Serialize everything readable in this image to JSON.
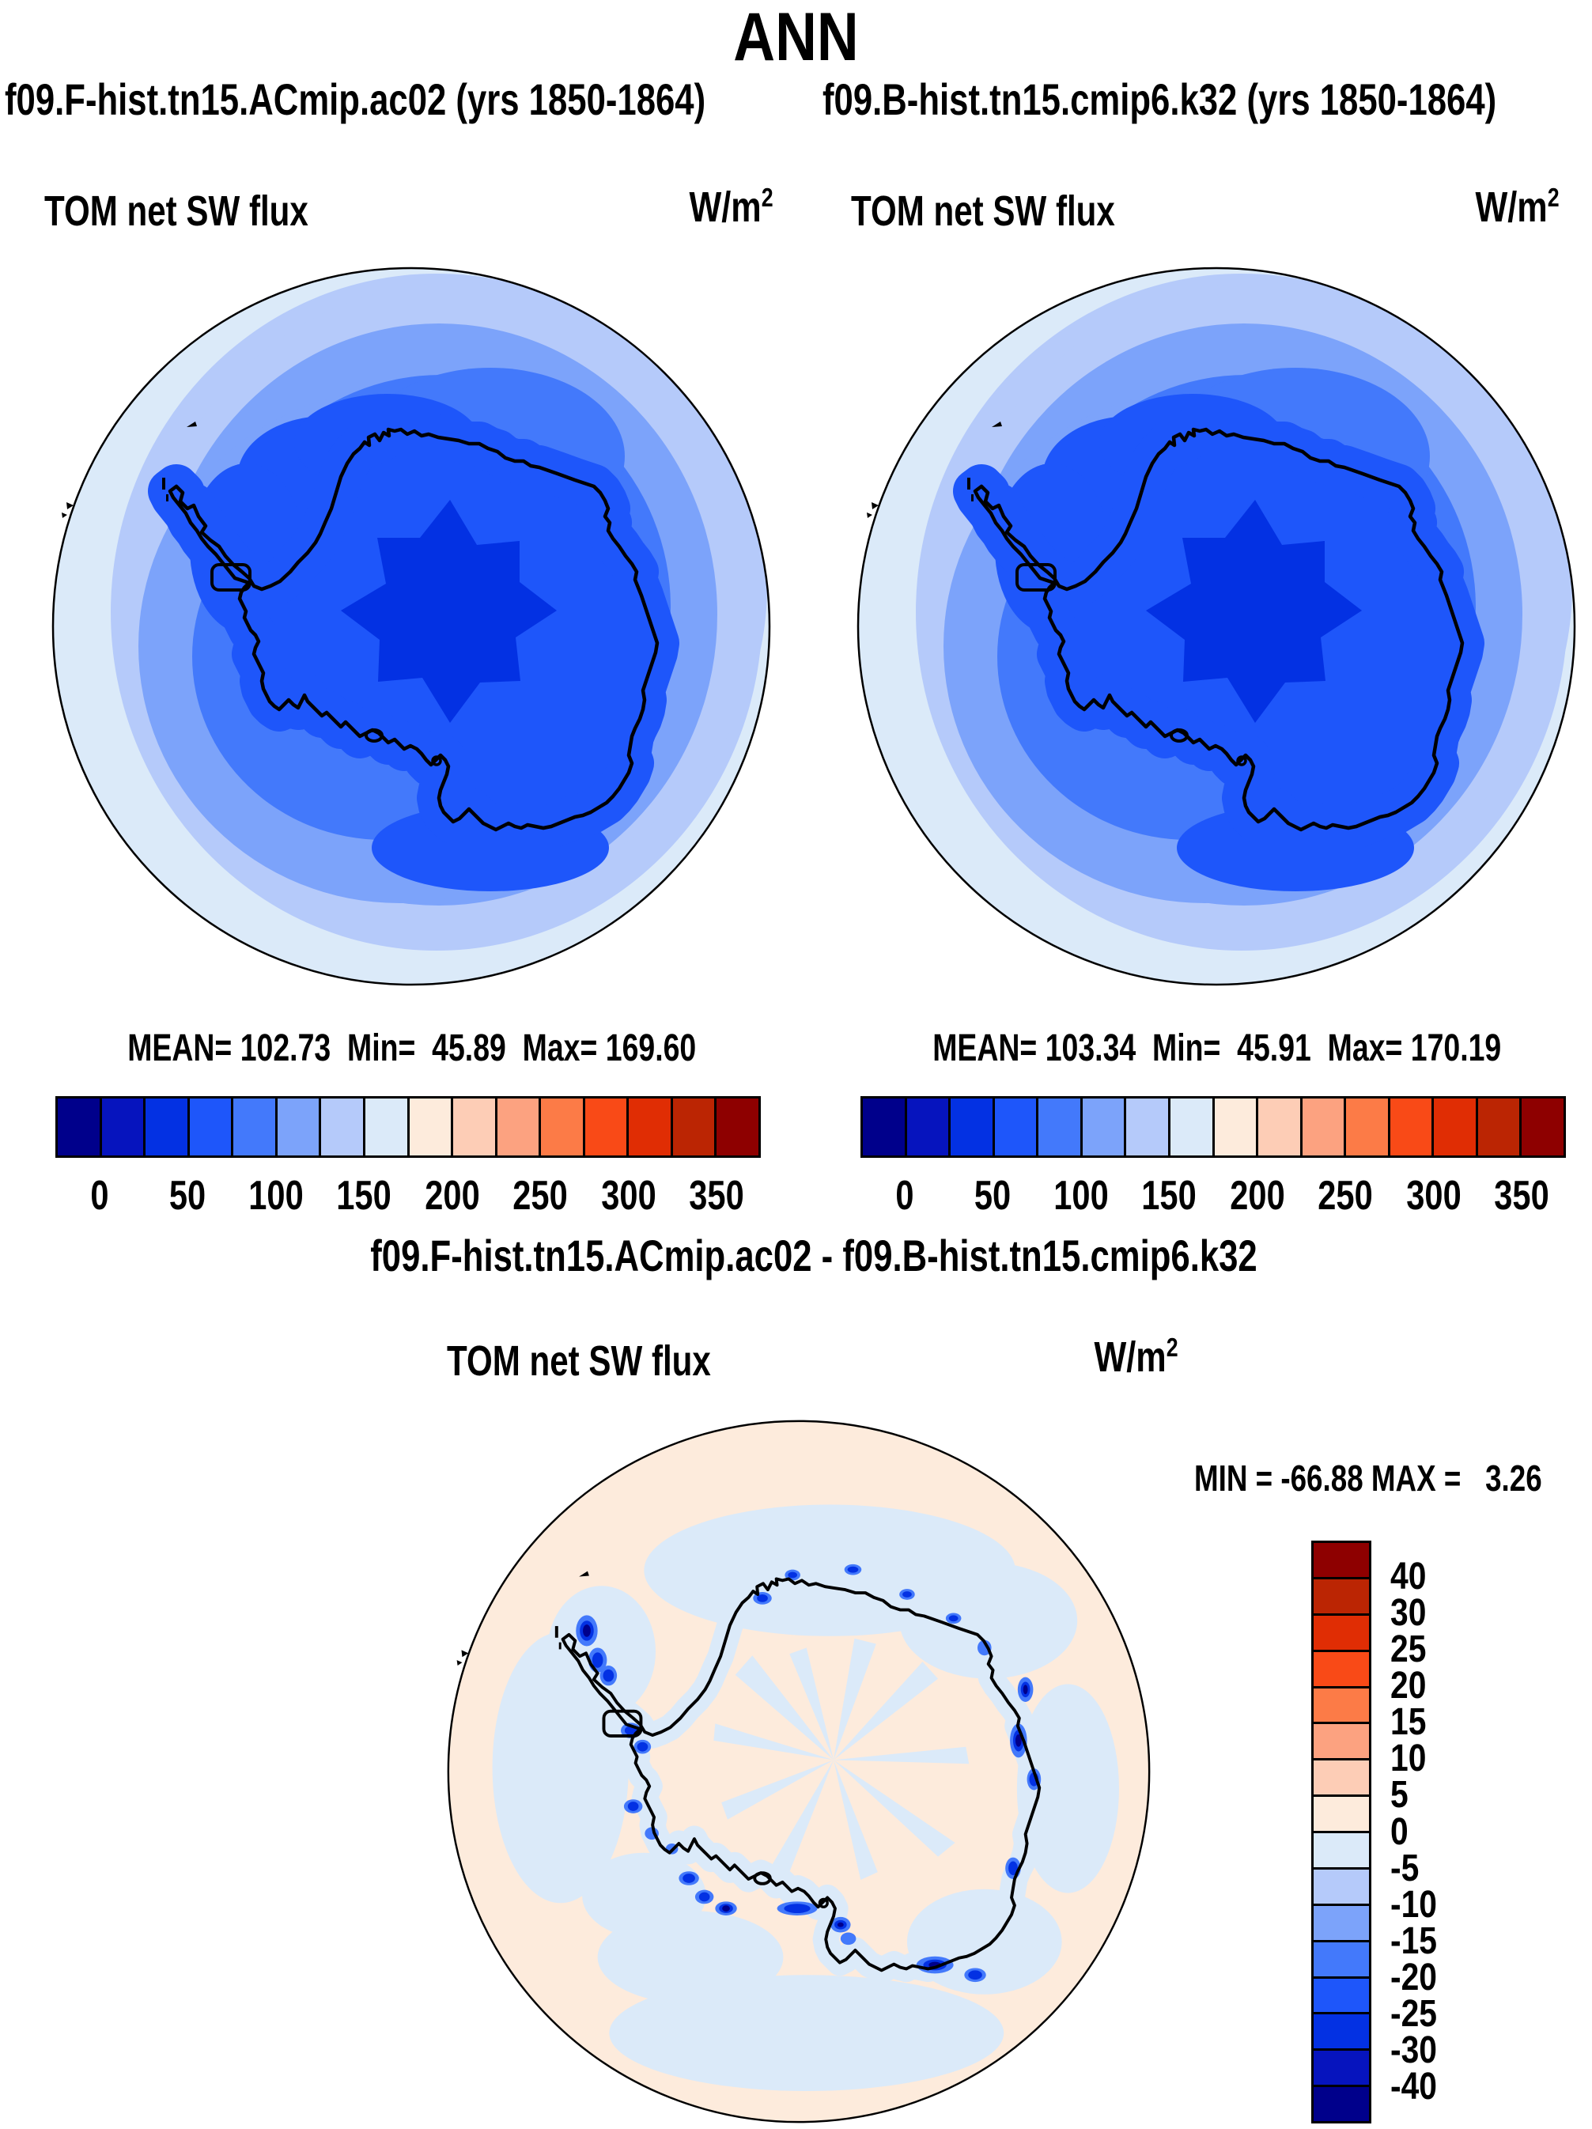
{
  "title": "ANN",
  "top_panels": [
    {
      "subtitle": "f09.F-hist.tn15.ACmip.ac02 (yrs 1850-1864)",
      "field_label": "TOM net SW flux",
      "units_base": "W/m",
      "units_exp": "2",
      "stats": "MEAN= 102.73  Min=  45.89  Max= 169.60"
    },
    {
      "subtitle": "f09.B-hist.tn15.cmip6.k32 (yrs 1850-1864)",
      "field_label": "TOM net SW flux",
      "units_base": "W/m",
      "units_exp": "2",
      "stats": "MEAN= 103.34  Min=  45.91  Max= 170.19"
    }
  ],
  "shared_colorbar": {
    "colors": [
      "#00008B",
      "#0614BE",
      "#0331E3",
      "#1E56FA",
      "#4379FB",
      "#7CA3FA",
      "#B5CAFA",
      "#DBEAF9",
      "#FDEBDC",
      "#FDCDB6",
      "#FCA280",
      "#FC7B47",
      "#F94A17",
      "#E02D04",
      "#BB2503",
      "#8E0000"
    ],
    "tick_labels": [
      "0",
      "50",
      "100",
      "150",
      "200",
      "250",
      "300",
      "350"
    ]
  },
  "difference_panel": {
    "title": "f09.F-hist.tn15.ACmip.ac02 - f09.B-hist.tn15.cmip6.k32",
    "field_label": "TOM net SW flux",
    "units_base": "W/m",
    "units_exp": "2",
    "minmax": "MIN = -66.88 MAX =   3.26",
    "colorbar": {
      "colors": [
        "#8E0000",
        "#BB2503",
        "#E02D04",
        "#F94A17",
        "#FC7B47",
        "#FCA280",
        "#FDCDB6",
        "#FDEBDC",
        "#DBEAF9",
        "#B5CAFA",
        "#7CA3FA",
        "#4379FB",
        "#1E56FA",
        "#0331E3",
        "#0614BE",
        "#00008B"
      ],
      "tick_labels": [
        "40",
        "30",
        "25",
        "20",
        "15",
        "10",
        "5",
        "0",
        "-5",
        "-10",
        "-15",
        "-20",
        "-25",
        "-30",
        "-40"
      ]
    }
  },
  "chart_data": [
    {
      "type": "heatmap",
      "panel": "top-left",
      "title": "f09.F-hist.tn15.ACmip.ac02 (yrs 1850-1864)",
      "season": "ANN",
      "variable": "TOM net SW flux",
      "units": "W/m2",
      "projection": "south polar stereographic",
      "region": "Antarctica",
      "stats": {
        "mean": 102.73,
        "min": 45.89,
        "max": 169.6
      },
      "contour_levels": [
        0,
        25,
        50,
        75,
        100,
        125,
        150,
        175,
        200,
        225,
        250,
        275,
        300,
        325,
        350
      ],
      "labeled_levels": [
        0,
        50,
        100,
        150,
        200,
        250,
        300,
        350
      ],
      "colormap": [
        "#00008B",
        "#0614BE",
        "#0331E3",
        "#1E56FA",
        "#4379FB",
        "#7CA3FA",
        "#B5CAFA",
        "#DBEAF9",
        "#FDEBDC",
        "#FDCDB6",
        "#FCA280",
        "#FC7B47",
        "#F94A17",
        "#E02D04",
        "#BB2503",
        "#8E0000"
      ],
      "legend_position": "bottom",
      "grid": false
    },
    {
      "type": "heatmap",
      "panel": "top-right",
      "title": "f09.B-hist.tn15.cmip6.k32 (yrs 1850-1864)",
      "season": "ANN",
      "variable": "TOM net SW flux",
      "units": "W/m2",
      "projection": "south polar stereographic",
      "region": "Antarctica",
      "stats": {
        "mean": 103.34,
        "min": 45.91,
        "max": 170.19
      },
      "contour_levels": [
        0,
        25,
        50,
        75,
        100,
        125,
        150,
        175,
        200,
        225,
        250,
        275,
        300,
        325,
        350
      ],
      "labeled_levels": [
        0,
        50,
        100,
        150,
        200,
        250,
        300,
        350
      ],
      "colormap": [
        "#00008B",
        "#0614BE",
        "#0331E3",
        "#1E56FA",
        "#4379FB",
        "#7CA3FA",
        "#B5CAFA",
        "#DBEAF9",
        "#FDEBDC",
        "#FDCDB6",
        "#FCA280",
        "#FC7B47",
        "#F94A17",
        "#E02D04",
        "#BB2503",
        "#8E0000"
      ],
      "legend_position": "bottom",
      "grid": false
    },
    {
      "type": "heatmap",
      "panel": "bottom-difference",
      "title": "f09.F-hist.tn15.ACmip.ac02 - f09.B-hist.tn15.cmip6.k32",
      "variable": "TOM net SW flux",
      "units": "W/m2",
      "projection": "south polar stereographic",
      "region": "Antarctica",
      "stats": {
        "min": -66.88,
        "max": 3.26
      },
      "contour_levels": [
        -40,
        -30,
        -25,
        -20,
        -15,
        -10,
        -5,
        0,
        5,
        10,
        15,
        20,
        25,
        30,
        40
      ],
      "colormap": [
        "#8E0000",
        "#BB2503",
        "#E02D04",
        "#F94A17",
        "#FC7B47",
        "#FCA280",
        "#FDCDB6",
        "#FDEBDC",
        "#DBEAF9",
        "#B5CAFA",
        "#7CA3FA",
        "#4379FB",
        "#1E56FA",
        "#0331E3",
        "#0614BE",
        "#00008B"
      ],
      "legend_position": "right",
      "grid": false
    }
  ]
}
